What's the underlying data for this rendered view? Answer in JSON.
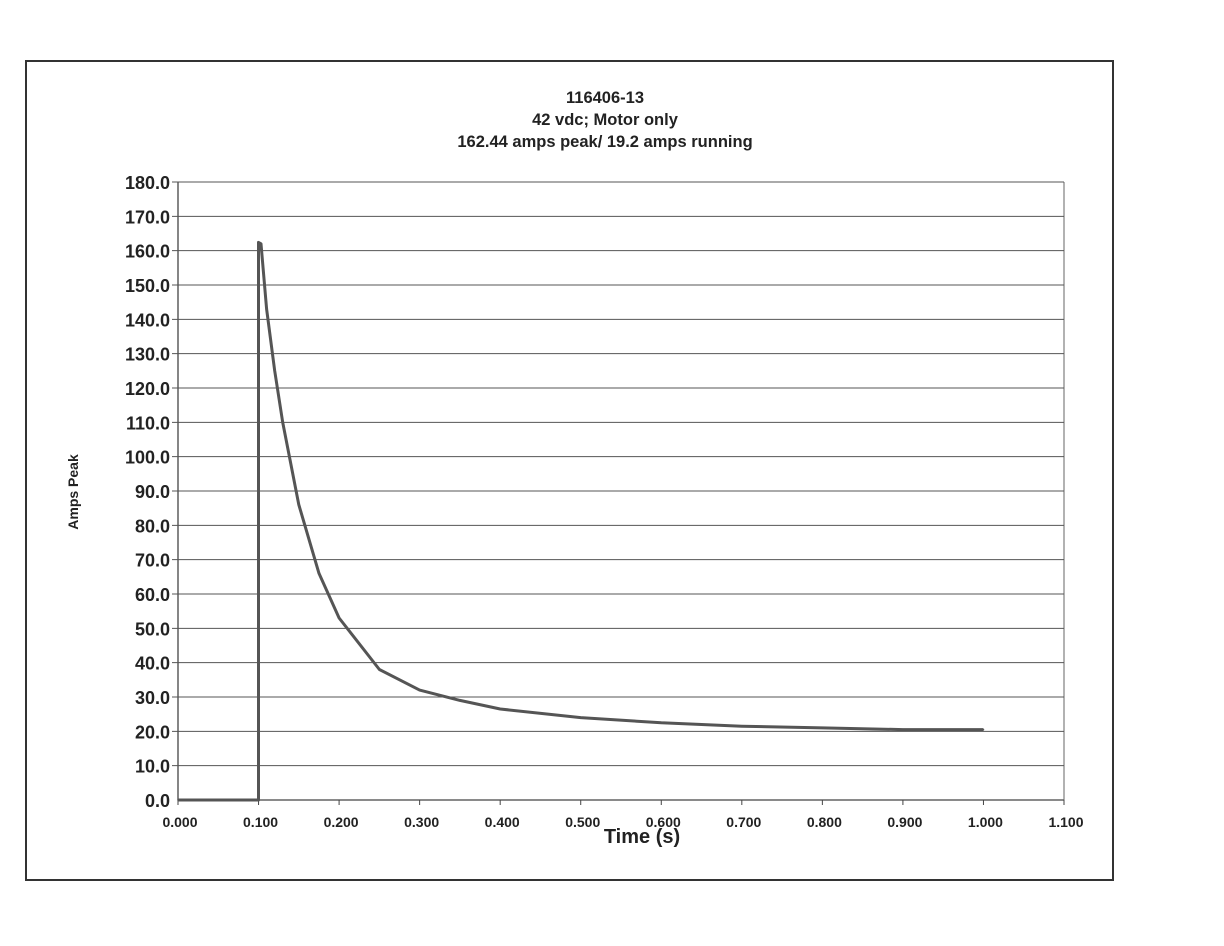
{
  "chart_data": {
    "type": "line",
    "title": [
      "116406-13",
      "42 vdc; Motor only",
      "162.44 amps peak/ 19.2 amps running"
    ],
    "xlabel": "Time (s)",
    "ylabel": "Amps Peak",
    "xlim": [
      0,
      1.1
    ],
    "ylim": [
      0,
      180
    ],
    "grid": "horizontal",
    "legend": "none",
    "line_color": "#555555",
    "xticks": [
      "0.000",
      "0.100",
      "0.200",
      "0.300",
      "0.400",
      "0.500",
      "0.600",
      "0.700",
      "0.800",
      "0.900",
      "1.000",
      "1.100"
    ],
    "yticks": [
      "0.0",
      "10.0",
      "20.0",
      "30.0",
      "40.0",
      "50.0",
      "60.0",
      "70.0",
      "80.0",
      "90.0",
      "100.0",
      "110.0",
      "120.0",
      "130.0",
      "140.0",
      "150.0",
      "160.0",
      "170.0",
      "180.0"
    ],
    "series": [
      {
        "x": [
          0,
          0.1,
          0.1,
          0.103,
          0.11,
          0.12,
          0.13,
          0.15,
          0.175,
          0.2,
          0.25,
          0.3,
          0.35,
          0.4,
          0.5,
          0.6,
          0.7,
          0.8,
          0.9,
          1.0
        ],
        "y": [
          0,
          0,
          162.4,
          162,
          143,
          125,
          110,
          86,
          66,
          53,
          38,
          32,
          29,
          26.5,
          24,
          22.5,
          21.5,
          21,
          20.5,
          20.5
        ]
      }
    ]
  }
}
